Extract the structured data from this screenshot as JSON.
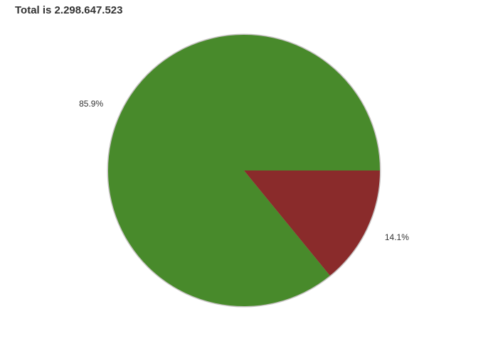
{
  "chart_data": {
    "type": "pie",
    "title": "Total is 2.298.647.523",
    "categories": [
      "",
      ""
    ],
    "values": [
      85.9,
      14.1
    ],
    "value_labels": [
      "85.9%",
      "14.1%"
    ],
    "colors": [
      "#488a2b",
      "#8a2b2b"
    ],
    "border_color": "#c8c4c4",
    "legend": "none"
  }
}
